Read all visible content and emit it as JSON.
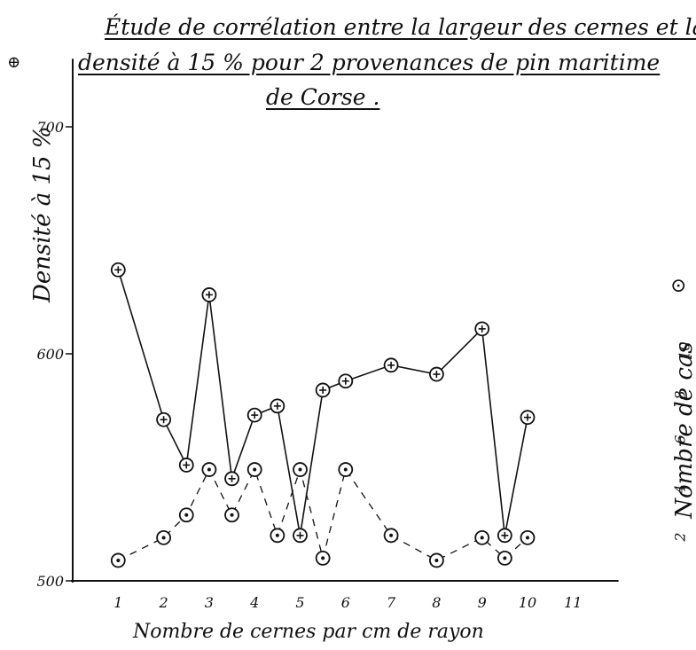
{
  "title": {
    "line1": [
      "Étude de corrélation entre la largeur des cernes et la"
    ],
    "line2": "densité à 15 % pour 2 provenances de pin maritime",
    "line3": "de Corse ."
  },
  "legend": {
    "plus_symbol": "⊕",
    "dot_symbol": "⊙"
  },
  "chart_data": {
    "type": "line",
    "xlabel": "Nombre de cernes par cm de rayon",
    "ylabel": "Densité à 15 %",
    "y2label": "Nombre de cas",
    "x_ticks": [
      1,
      2,
      3,
      4,
      5,
      6,
      7,
      8,
      9,
      10,
      11
    ],
    "y_ticks": [
      500,
      600,
      700
    ],
    "y2_ticks": [
      "2",
      "4",
      "6",
      "8",
      "10"
    ],
    "xlim": [
      0,
      12
    ],
    "ylim": [
      500,
      730
    ],
    "series": [
      {
        "symbol": "plus",
        "style": "solid",
        "points": [
          [
            1,
            637
          ],
          [
            2,
            571
          ],
          [
            2.5,
            551
          ],
          [
            3,
            626
          ],
          [
            3.5,
            545
          ],
          [
            4,
            573
          ],
          [
            4.5,
            577
          ],
          [
            5,
            520
          ],
          [
            5.5,
            584
          ],
          [
            6,
            588
          ],
          [
            7,
            595
          ],
          [
            8,
            591
          ],
          [
            9,
            611
          ],
          [
            9.5,
            520
          ],
          [
            10,
            572
          ]
        ]
      },
      {
        "symbol": "dot",
        "style": "dashed",
        "points": [
          [
            1,
            509
          ],
          [
            2,
            519
          ],
          [
            2.5,
            529
          ],
          [
            3,
            549
          ],
          [
            3.5,
            529
          ],
          [
            4,
            549
          ],
          [
            4.5,
            520
          ],
          [
            5,
            549
          ],
          [
            5.5,
            510
          ],
          [
            6,
            549
          ],
          [
            7,
            520
          ],
          [
            8,
            509
          ],
          [
            9,
            519
          ],
          [
            9.5,
            510
          ],
          [
            10,
            519
          ]
        ]
      }
    ]
  }
}
